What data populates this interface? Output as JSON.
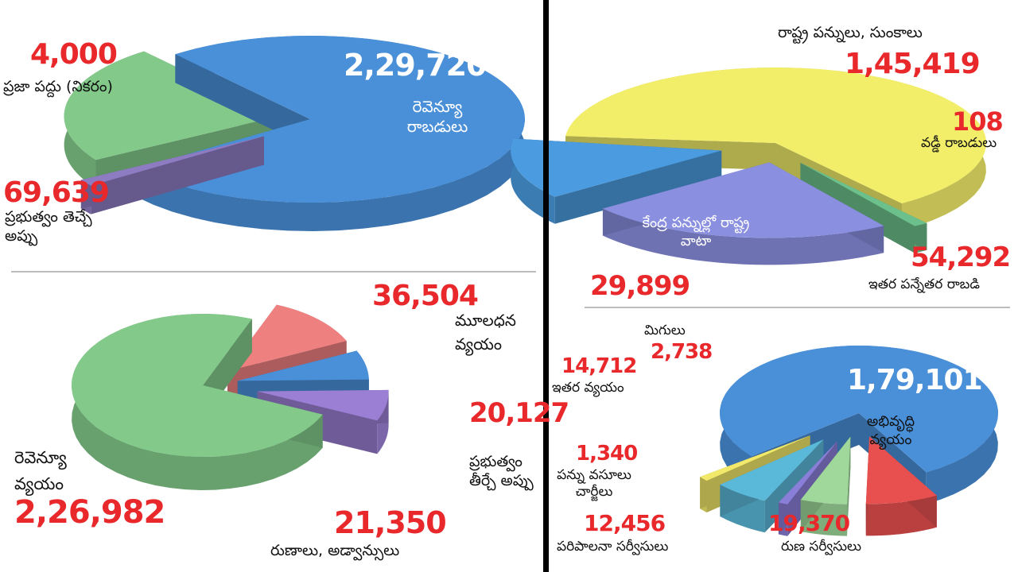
{
  "chart_data": [
    {
      "type": "pie",
      "panel": "top-left",
      "slices": [
        {
          "label": "రెవెన్యూ రాబడులు",
          "value": "2,29,720",
          "num": 229720,
          "color": "#4a90d9"
        },
        {
          "label": "ప్రజా పద్దు (నికరం)",
          "value": "4,000",
          "num": 4000,
          "color": "#8e7cc3"
        },
        {
          "label": "ప్రభుత్వం తెచ్చే అప్పు",
          "value": "69,639",
          "num": 69639,
          "color": "#82c98a"
        }
      ]
    },
    {
      "type": "pie",
      "panel": "top-right",
      "slices": [
        {
          "label": "రాష్ట్ర పన్నులు, సుంకాలు",
          "value": "1,45,419",
          "num": 145419,
          "color": "#f2ee6a"
        },
        {
          "label": "వడ్డీ రాబడులు",
          "value": "108",
          "num": 108,
          "color": "#6cc08b"
        },
        {
          "label": "ఇతర పన్నేతర రాబడి",
          "value": "54,292",
          "num": 54292,
          "color": "#8a8fe0"
        },
        {
          "label": "కేంద్ర పన్నుల్లో రాష్ట్ర వాటా",
          "value": "29,899",
          "num": 29899,
          "color": "#4a9be0"
        }
      ]
    },
    {
      "type": "pie",
      "panel": "bottom-left",
      "slices": [
        {
          "label": "రెవెన్యూ వ్యయం",
          "value": "2,26,982",
          "num": 226982,
          "color": "#82c98a"
        },
        {
          "label": "మూలధన వ్యయం",
          "value": "36,504",
          "num": 36504,
          "color": "#ef8080"
        },
        {
          "label": "ప్రభుత్వం తీర్చే అప్పు",
          "value": "20,127",
          "num": 20127,
          "color": "#4a90d9"
        },
        {
          "label": "రుణాలు, అడ్వాన్సులు",
          "value": "21,350",
          "num": 21350,
          "color": "#9b7fd4"
        }
      ]
    },
    {
      "type": "pie",
      "panel": "bottom-right",
      "slices": [
        {
          "label": "అభివృద్ధి వ్యయం",
          "value": "1,79,101",
          "num": 179101,
          "color": "#4a90d9"
        },
        {
          "label": "రుణ సర్వీసులు",
          "value": "19,370",
          "num": 19370,
          "color": "#e85050"
        },
        {
          "label": "పరిపాలనా సర్వీసులు",
          "value": "12,456",
          "num": 12456,
          "color": "#9fd89a"
        },
        {
          "label": "పన్ను వసూలు చార్జీలు",
          "value": "1,340",
          "num": 1340,
          "color": "#8a7fd8"
        },
        {
          "label": "ఇతర వ్యయం",
          "value": "14,712",
          "num": 14712,
          "color": "#5ab8d8"
        },
        {
          "label": "మిగులు",
          "value": "2,738",
          "num": 2738,
          "color": "#f2e86a"
        }
      ]
    }
  ]
}
